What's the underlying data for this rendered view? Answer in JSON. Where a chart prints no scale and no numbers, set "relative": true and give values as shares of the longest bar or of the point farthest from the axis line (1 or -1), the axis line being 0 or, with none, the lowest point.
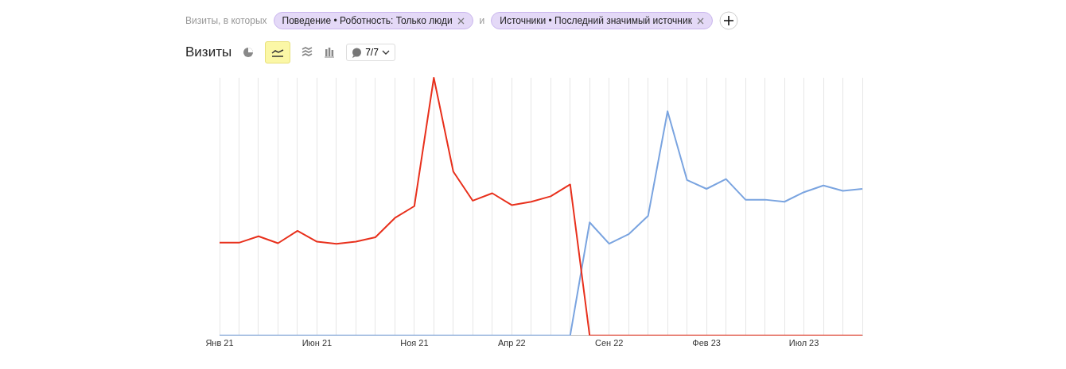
{
  "chart_data": {
    "type": "line",
    "title": "Визиты",
    "annotations": [
      "Визиты, в которых",
      "Поведение • Роботность: Только люди",
      "и",
      "Источники • Последний значимый источник",
      "7/7"
    ],
    "relative": true,
    "categories": [
      "Янв 21",
      null,
      null,
      null,
      null,
      "Июн 21",
      null,
      null,
      null,
      null,
      "Ноя 21",
      null,
      null,
      null,
      null,
      "Апр 22",
      null,
      null,
      null,
      null,
      "Сен 22",
      null,
      null,
      null,
      null,
      "Фев 23",
      null,
      null,
      null,
      null,
      "Июл 23",
      null,
      null,
      null
    ],
    "series": [
      {
        "color": "#e8301c",
        "values": [
          0.36,
          0.36,
          0.385,
          0.358,
          0.406,
          0.364,
          0.356,
          0.364,
          0.381,
          0.456,
          0.502,
          1,
          0.636,
          0.523,
          0.552,
          0.506,
          0.519,
          0.54,
          0.586,
          0,
          0,
          0,
          0,
          0,
          0,
          0,
          0,
          0,
          0,
          0,
          0,
          0,
          0,
          0
        ]
      },
      {
        "color": "#7aa4e0",
        "values": [
          0,
          0,
          0,
          0,
          0,
          0,
          0,
          0,
          0,
          0,
          0,
          0,
          0,
          0,
          0,
          0,
          0,
          0,
          0,
          0.439,
          0.356,
          0.393,
          0.464,
          0.87,
          0.603,
          0.569,
          0.607,
          0.527,
          0.527,
          0.519,
          0.556,
          0.582,
          0.561,
          0.569
        ]
      }
    ],
    "grid": "x",
    "legend": false,
    "marker": "none",
    "line_style": "solid"
  }
}
